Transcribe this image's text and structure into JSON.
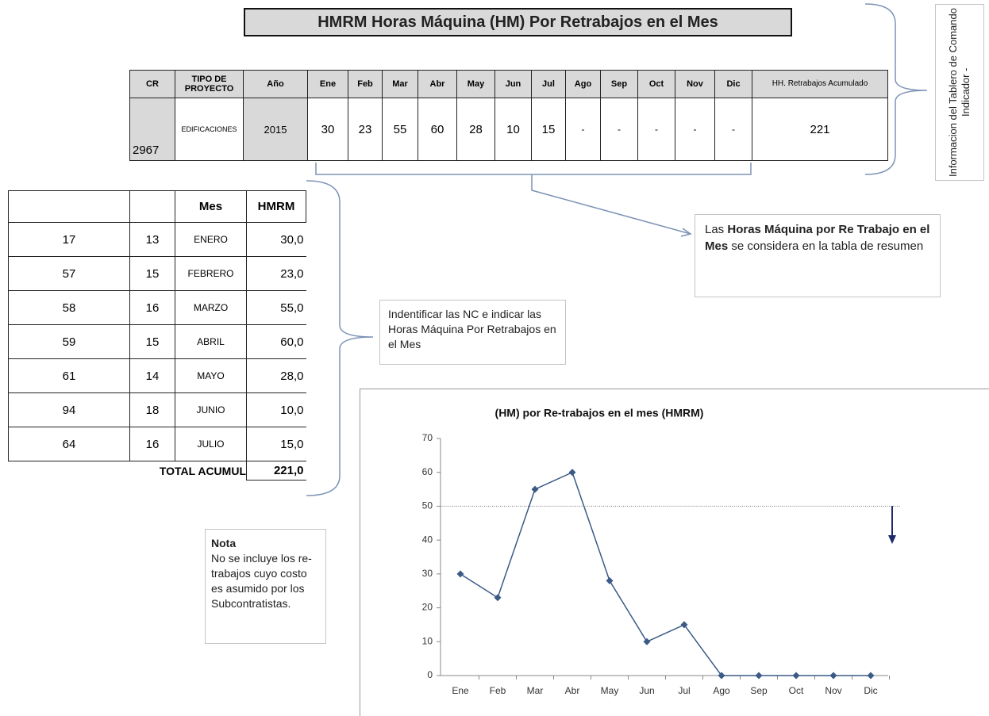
{
  "title": "HMRM Horas Máquina (HM) Por Retrabajos en el Mes",
  "summary_table": {
    "header": [
      "CR",
      "TIPO DE PROYECTO",
      "Año",
      "Ene",
      "Feb",
      "Mar",
      "Abr",
      "May",
      "Jun",
      "Jul",
      "Ago",
      "Sep",
      "Oct",
      "Nov",
      "Dic",
      "HH. Retrabajos Acumulado"
    ],
    "rows": [
      [
        "2967",
        "EDIFICACIONES",
        "2015",
        "30",
        "23",
        "55",
        "60",
        "28",
        "10",
        "15",
        "-",
        "-",
        "-",
        "-",
        "-",
        "221"
      ]
    ]
  },
  "side_label": "Informacion del Tablero de Comando Indicador -",
  "callout_summary": [
    "Las ",
    "Horas Máquina por Re Trabajo en el Mes",
    " se considera en la tabla de resumen"
  ],
  "detail_table": {
    "header": [
      "Mes",
      "HMRM"
    ],
    "rows": [
      [
        "17",
        "13",
        "ENERO",
        "30,0"
      ],
      [
        "57",
        "15",
        "FEBRERO",
        "23,0"
      ],
      [
        "58",
        "16",
        "MARZO",
        "55,0"
      ],
      [
        "59",
        "15",
        "ABRIL",
        "60,0"
      ],
      [
        "61",
        "14",
        "MAYO",
        "28,0"
      ],
      [
        "94",
        "18",
        "JUNIO",
        "10,0"
      ],
      [
        "64",
        "16",
        "JULIO",
        "15,0"
      ]
    ],
    "total_label": "TOTAL ACUMUL",
    "total": "221,0"
  },
  "callout_detail": "Indentificar las NC e indicar las Horas Máquina Por Retrabajos en el Mes",
  "note": {
    "title": "Nota",
    "text": "No se incluye los re-trabajos cuyo costo es asumido por los Subcontratistas."
  },
  "chart_data": {
    "type": "line",
    "title": "(HM)  por Re-trabajos en el mes (HMRM)",
    "categories": [
      "Ene",
      "Feb",
      "Mar",
      "Abr",
      "May",
      "Jun",
      "Jul",
      "Ago",
      "Sep",
      "Oct",
      "Nov",
      "Dic"
    ],
    "values": [
      30,
      23,
      55,
      60,
      28,
      10,
      15,
      0,
      0,
      0,
      0,
      0
    ],
    "color": "#3b5b86",
    "ylim": [
      0,
      70
    ],
    "yticks": [
      0,
      10,
      20,
      30,
      40,
      50,
      60,
      70
    ],
    "reference_line": 50
  }
}
